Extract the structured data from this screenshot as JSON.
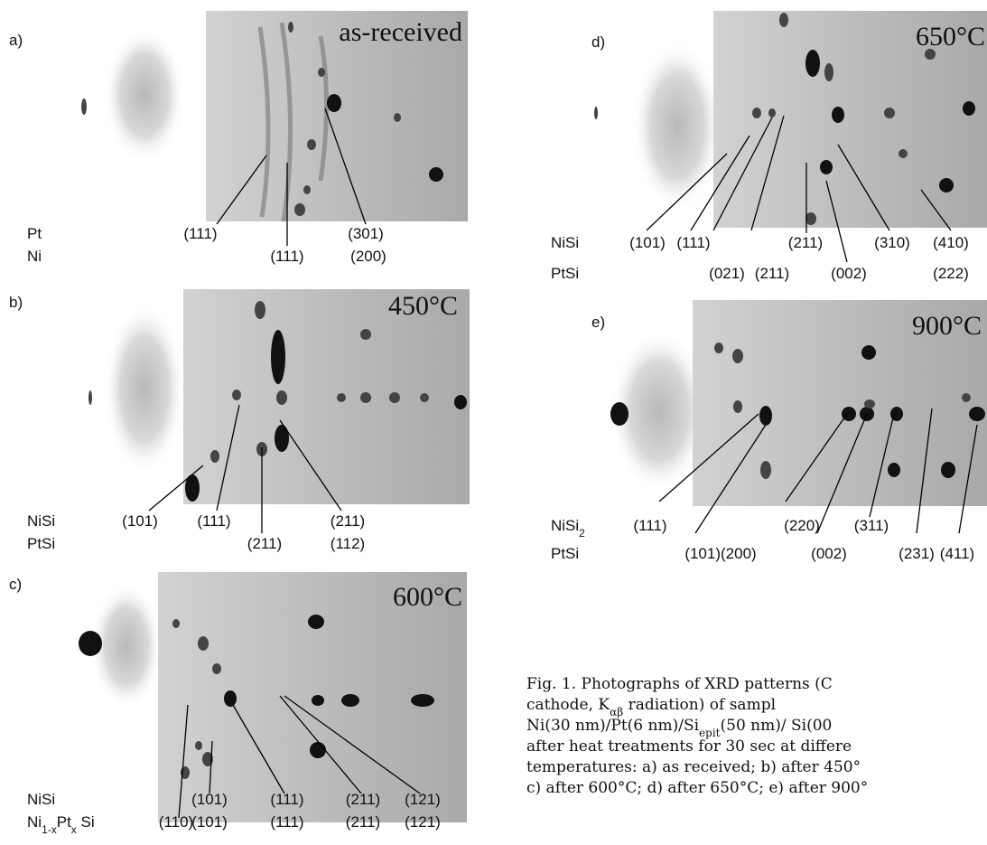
{
  "panels": [
    {
      "letter": "a)",
      "title": "as-received",
      "rows": [
        {
          "name": [
            "Pt"
          ],
          "labels": [
            "(111)",
            "(301)"
          ]
        },
        {
          "name": [
            "Ni"
          ],
          "labels": [
            "(111)",
            "(200)"
          ]
        }
      ]
    },
    {
      "letter": "b)",
      "title": "450°C",
      "rows": [
        {
          "name": [
            "NiSi"
          ],
          "labels": [
            "(101)",
            "(111)",
            "(211)"
          ]
        },
        {
          "name": [
            "PtSi"
          ],
          "labels": [
            "(211)",
            "(112)"
          ]
        }
      ]
    },
    {
      "letter": "c)",
      "title": "600°C",
      "rows": [
        {
          "name": [
            "NiSi"
          ],
          "labels": [
            "(101)",
            "(111)",
            "(211)",
            "(121)"
          ]
        },
        {
          "name": [
            "Ni",
            "1-x",
            "Pt",
            "x",
            " Si"
          ],
          "labels": [
            "(110)",
            "(101)",
            "(111)",
            "(211)",
            "(121)"
          ]
        }
      ]
    },
    {
      "letter": "d)",
      "title": "650°C",
      "rows": [
        {
          "name": [
            "NiSi"
          ],
          "labels": [
            "(101)",
            "(111)",
            "(211)",
            "(310)",
            "(410)"
          ]
        },
        {
          "name": [
            "PtSi"
          ],
          "labels": [
            "(021)",
            "(211)",
            "(002)",
            "(222)"
          ]
        }
      ]
    },
    {
      "letter": "e)",
      "title": "900°C",
      "rows": [
        {
          "name": [
            "NiSi",
            "2"
          ],
          "labels": [
            "(111)",
            "(220)",
            "(311)"
          ]
        },
        {
          "name": [
            "PtSi"
          ],
          "labels": [
            "(101)(200)",
            "(002)",
            "(231)",
            "(411)"
          ]
        }
      ]
    }
  ],
  "caption": {
    "lines": [
      [
        "Fig. 1. Photographs of XRD patterns (C"
      ],
      [
        "cathode,  K",
        "αβ",
        "  radiation)  of  sampl"
      ],
      [
        "Ni(30 nm)/Pt(6 nm)/Si",
        "epit",
        "(50  nm)/  Si(00"
      ],
      [
        "after heat treatments for 30 sec at differe"
      ],
      [
        "temperatures: a) as received; b) after 450°"
      ],
      [
        "c) after 600°C; d) after 650°C; e) after 900°"
      ]
    ]
  }
}
